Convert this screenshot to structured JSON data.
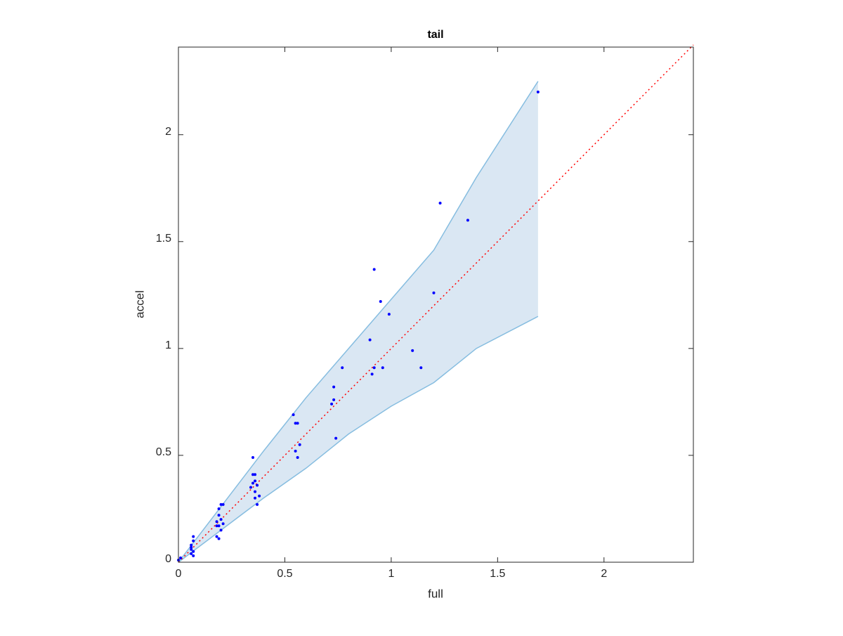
{
  "chart_data": {
    "type": "scatter",
    "title": "tail",
    "x_label": "full",
    "y_label": "accel",
    "xlim": [
      0,
      2.42
    ],
    "ylim": [
      0,
      2.41
    ],
    "xticks": [
      0,
      0.5,
      1,
      1.5,
      2
    ],
    "yticks": [
      0,
      0.5,
      1,
      1.5,
      2
    ],
    "band": {
      "color": "#86bde0",
      "fill": "#dae7f3",
      "x": [
        0,
        0.2,
        0.4,
        0.6,
        0.8,
        1.0,
        1.2,
        1.4,
        1.69
      ],
      "upper": [
        0,
        0.26,
        0.52,
        0.77,
        1.0,
        1.23,
        1.46,
        1.8,
        2.25
      ],
      "lower": [
        0,
        0.15,
        0.3,
        0.44,
        0.6,
        0.73,
        0.84,
        1.0,
        1.15
      ]
    },
    "reference_line": {
      "color": "#ff0000",
      "x": [
        0,
        2.42
      ],
      "values": [
        0,
        2.42
      ]
    },
    "points": {
      "color": "#0000ff",
      "x": [
        0.0,
        0.01,
        0.06,
        0.06,
        0.06,
        0.07,
        0.07,
        0.06,
        0.07,
        0.07,
        0.18,
        0.18,
        0.19,
        0.18,
        0.19,
        0.19,
        0.2,
        0.21,
        0.2,
        0.2,
        0.21,
        0.19,
        0.34,
        0.35,
        0.35,
        0.36,
        0.36,
        0.36,
        0.37,
        0.38,
        0.36,
        0.37,
        0.35,
        0.54,
        0.55,
        0.56,
        0.55,
        0.56,
        0.57,
        0.72,
        0.73,
        0.73,
        0.74,
        0.77,
        0.9,
        0.91,
        0.92,
        0.92,
        0.95,
        0.96,
        0.99,
        1.1,
        1.14,
        1.2,
        1.23,
        1.36,
        1.69
      ],
      "y": [
        0.01,
        0.02,
        0.04,
        0.06,
        0.08,
        0.1,
        0.12,
        0.07,
        0.05,
        0.03,
        0.17,
        0.12,
        0.11,
        0.19,
        0.22,
        0.25,
        0.27,
        0.27,
        0.2,
        0.15,
        0.18,
        0.17,
        0.35,
        0.41,
        0.49,
        0.38,
        0.33,
        0.3,
        0.27,
        0.31,
        0.41,
        0.36,
        0.37,
        0.69,
        0.65,
        0.65,
        0.52,
        0.49,
        0.55,
        0.74,
        0.76,
        0.82,
        0.58,
        0.91,
        1.04,
        0.88,
        0.91,
        1.37,
        1.22,
        0.91,
        1.16,
        0.99,
        0.91,
        1.26,
        1.68,
        1.6,
        2.2
      ]
    }
  }
}
